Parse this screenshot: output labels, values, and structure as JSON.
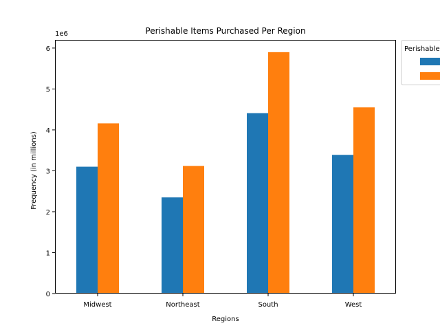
{
  "chart_data": {
    "type": "bar",
    "title": "Perishable Items Purchased Per Region",
    "xlabel": "Regions",
    "ylabel": "Frequency (in millions)",
    "y_offset_text": "1e6",
    "categories": [
      "Midwest",
      "Northeast",
      "South",
      "West"
    ],
    "series": [
      {
        "values": [
          3100000,
          2350000,
          4410000,
          3390000
        ]
      },
      {
        "values": [
          4160000,
          3120000,
          5900000,
          4550000
        ]
      }
    ],
    "series_colors": [
      "#1f77b4",
      "#ff7f0e"
    ],
    "ylim": [
      0,
      6200000
    ],
    "yticks": [
      0,
      1,
      2,
      3,
      4,
      5,
      6
    ],
    "y_scale": 1000000,
    "grid": false,
    "legend": {
      "title": "Perishable",
      "placement": "outside-top-right"
    }
  }
}
